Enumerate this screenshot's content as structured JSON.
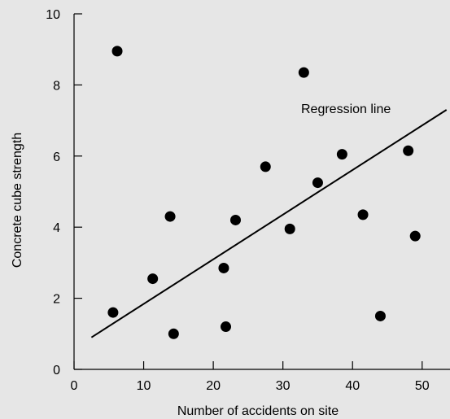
{
  "chart_data": {
    "type": "scatter",
    "xlabel": "Number of accidents on site",
    "ylabel": "Concrete cube strength",
    "xlim": [
      0,
      54
    ],
    "ylim": [
      0,
      10
    ],
    "x_ticks": [
      0,
      10,
      20,
      30,
      40,
      50
    ],
    "y_ticks": [
      0,
      2,
      4,
      6,
      8,
      10
    ],
    "grid": false,
    "points": [
      {
        "x": 6.2,
        "y": 8.95
      },
      {
        "x": 5.6,
        "y": 1.6
      },
      {
        "x": 11.3,
        "y": 2.55
      },
      {
        "x": 13.8,
        "y": 4.3
      },
      {
        "x": 14.3,
        "y": 1.0
      },
      {
        "x": 21.5,
        "y": 2.85
      },
      {
        "x": 21.8,
        "y": 1.2
      },
      {
        "x": 23.2,
        "y": 4.2
      },
      {
        "x": 27.5,
        "y": 5.7
      },
      {
        "x": 31.0,
        "y": 3.95
      },
      {
        "x": 33.0,
        "y": 8.35
      },
      {
        "x": 35.0,
        "y": 5.25
      },
      {
        "x": 38.5,
        "y": 6.05
      },
      {
        "x": 41.5,
        "y": 4.35
      },
      {
        "x": 44.0,
        "y": 1.5
      },
      {
        "x": 48.0,
        "y": 6.15
      },
      {
        "x": 49.0,
        "y": 3.75
      }
    ],
    "regression_line": {
      "x": [
        2.5,
        53.5
      ],
      "y": [
        0.9,
        7.3
      ]
    },
    "annotations": [
      {
        "text": "Regression line"
      }
    ]
  }
}
